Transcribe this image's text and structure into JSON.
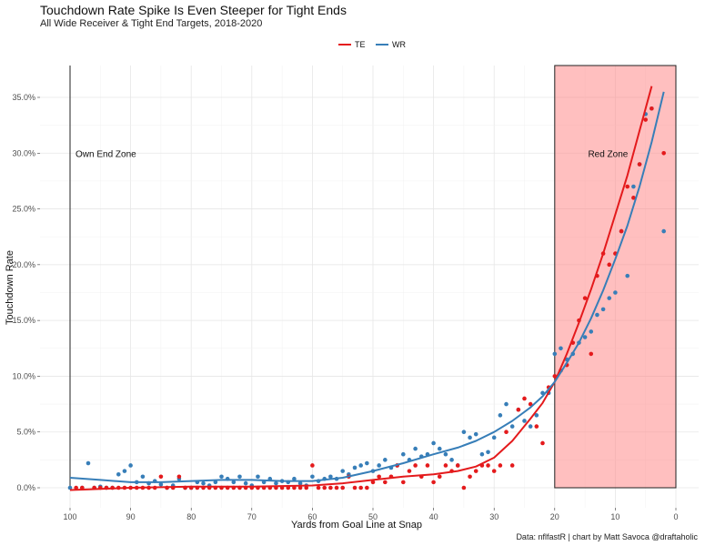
{
  "header": {
    "title": "Touchdown Rate Spike Is Even Steeper for Tight Ends",
    "subtitle": "All Wide Receiver & Tight End Targets, 2018-2020"
  },
  "caption": "Data: nflfastR | chart by Matt Savoca @draftaholic",
  "chart_data": {
    "type": "scatter",
    "xlabel": "Yards from Goal Line at Snap",
    "ylabel": "Touchdown Rate",
    "xlim": [
      100,
      0
    ],
    "ylim": [
      0,
      0.35
    ],
    "x_reversed": true,
    "x_ticks": [
      100,
      90,
      80,
      70,
      60,
      50,
      40,
      30,
      20,
      10,
      0
    ],
    "x_tick_labels": [
      "100",
      "90",
      "80",
      "70",
      "60",
      "50",
      "40",
      "30",
      "20",
      "10",
      "0"
    ],
    "y_ticks": [
      0,
      0.05,
      0.1,
      0.15,
      0.2,
      0.25,
      0.3,
      0.35
    ],
    "y_tick_labels": [
      "0.0%",
      "5.0%",
      "10.0%",
      "15.0%",
      "20.0%",
      "25.0%",
      "30.0%",
      "35.0%"
    ],
    "grid": true,
    "legend_position": "top",
    "annotations": {
      "own_end_zone": {
        "label": "Own End Zone",
        "x": 100
      },
      "red_zone": {
        "label": "Red Zone",
        "x_start": 20,
        "x_end": 0
      }
    },
    "series": [
      {
        "name": "TE",
        "color": "#e41a1c",
        "points": [
          [
            99,
            0
          ],
          [
            98,
            0
          ],
          [
            96,
            0
          ],
          [
            95,
            0
          ],
          [
            94,
            0
          ],
          [
            93,
            0
          ],
          [
            92,
            0
          ],
          [
            91,
            0
          ],
          [
            90,
            0
          ],
          [
            89,
            0
          ],
          [
            88,
            0
          ],
          [
            87,
            0
          ],
          [
            86,
            0
          ],
          [
            85,
            0.01
          ],
          [
            84,
            0
          ],
          [
            83,
            0
          ],
          [
            82,
            0.01
          ],
          [
            81,
            0
          ],
          [
            80,
            0
          ],
          [
            79,
            0
          ],
          [
            78,
            0
          ],
          [
            77,
            0
          ],
          [
            76,
            0
          ],
          [
            75,
            0
          ],
          [
            74,
            0
          ],
          [
            73,
            0
          ],
          [
            72,
            0
          ],
          [
            71,
            0
          ],
          [
            70,
            0
          ],
          [
            69,
            0
          ],
          [
            68,
            0
          ],
          [
            67,
            0
          ],
          [
            66,
            0
          ],
          [
            65,
            0
          ],
          [
            64,
            0
          ],
          [
            63,
            0
          ],
          [
            62,
            0
          ],
          [
            61,
            0
          ],
          [
            60,
            0.02
          ],
          [
            59,
            0
          ],
          [
            58,
            0
          ],
          [
            57,
            0
          ],
          [
            56,
            0
          ],
          [
            55,
            0
          ],
          [
            54,
            0.01
          ],
          [
            53,
            0
          ],
          [
            52,
            0
          ],
          [
            51,
            0
          ],
          [
            50,
            0.005
          ],
          [
            49,
            0.01
          ],
          [
            48,
            0.005
          ],
          [
            47,
            0.01
          ],
          [
            46,
            0.02
          ],
          [
            45,
            0.005
          ],
          [
            44,
            0.015
          ],
          [
            43,
            0.02
          ],
          [
            42,
            0.01
          ],
          [
            41,
            0.02
          ],
          [
            40,
            0.005
          ],
          [
            39,
            0.01
          ],
          [
            38,
            0.02
          ],
          [
            37,
            0.015
          ],
          [
            36,
            0.02
          ],
          [
            35,
            0.0
          ],
          [
            34,
            0.01
          ],
          [
            33,
            0.015
          ],
          [
            32,
            0.02
          ],
          [
            31,
            0.02
          ],
          [
            30,
            0.015
          ],
          [
            29,
            0.02
          ],
          [
            28,
            0.05
          ],
          [
            27,
            0.02
          ],
          [
            26,
            0.07
          ],
          [
            25,
            0.08
          ],
          [
            24,
            0.075
          ],
          [
            23,
            0.055
          ],
          [
            22,
            0.04
          ],
          [
            21,
            0.09
          ],
          [
            20,
            0.1
          ],
          [
            19,
            0.105
          ],
          [
            18,
            0.11
          ],
          [
            17,
            0.13
          ],
          [
            16,
            0.15
          ],
          [
            15,
            0.17
          ],
          [
            14,
            0.12
          ],
          [
            13,
            0.19
          ],
          [
            12,
            0.21
          ],
          [
            11,
            0.2
          ],
          [
            10,
            0.21
          ],
          [
            9,
            0.23
          ],
          [
            8,
            0.27
          ],
          [
            7,
            0.26
          ],
          [
            6,
            0.29
          ],
          [
            5,
            0.33
          ],
          [
            4,
            0.34
          ],
          [
            2,
            0.3
          ]
        ],
        "smooth": [
          [
            100,
            -0.002
          ],
          [
            90,
            0.0
          ],
          [
            80,
            0.001
          ],
          [
            70,
            0.001
          ],
          [
            60,
            0.002
          ],
          [
            55,
            0.004
          ],
          [
            50,
            0.007
          ],
          [
            45,
            0.01
          ],
          [
            40,
            0.012
          ],
          [
            36,
            0.015
          ],
          [
            33,
            0.019
          ],
          [
            30,
            0.027
          ],
          [
            27,
            0.042
          ],
          [
            24,
            0.062
          ],
          [
            22,
            0.076
          ],
          [
            20,
            0.095
          ],
          [
            18,
            0.12
          ],
          [
            16,
            0.148
          ],
          [
            14,
            0.178
          ],
          [
            12,
            0.21
          ],
          [
            10,
            0.245
          ],
          [
            8,
            0.28
          ],
          [
            6,
            0.32
          ],
          [
            4,
            0.36
          ]
        ]
      },
      {
        "name": "WR",
        "color": "#377eb8",
        "points": [
          [
            100,
            0
          ],
          [
            98,
            0
          ],
          [
            97,
            0.022
          ],
          [
            96,
            0
          ],
          [
            95,
            0.001
          ],
          [
            94,
            0
          ],
          [
            93,
            0
          ],
          [
            92,
            0.012
          ],
          [
            91,
            0.015
          ],
          [
            90,
            0.02
          ],
          [
            89,
            0.005
          ],
          [
            88,
            0.01
          ],
          [
            87,
            0.004
          ],
          [
            86,
            0.006
          ],
          [
            85,
            0.003
          ],
          [
            84,
            0.0
          ],
          [
            83,
            0.002
          ],
          [
            82,
            0.008
          ],
          [
            81,
            0.0
          ],
          [
            80,
            0.0
          ],
          [
            79,
            0.005
          ],
          [
            78,
            0.004
          ],
          [
            77,
            0.002
          ],
          [
            76,
            0.005
          ],
          [
            75,
            0.01
          ],
          [
            74,
            0.008
          ],
          [
            73,
            0.005
          ],
          [
            72,
            0.01
          ],
          [
            71,
            0.004
          ],
          [
            70,
            0.002
          ],
          [
            69,
            0.01
          ],
          [
            68,
            0.005
          ],
          [
            67,
            0.008
          ],
          [
            66,
            0.004
          ],
          [
            65,
            0.006
          ],
          [
            64,
            0.005
          ],
          [
            63,
            0.008
          ],
          [
            62,
            0.004
          ],
          [
            61,
            0.002
          ],
          [
            60,
            0.01
          ],
          [
            59,
            0.006
          ],
          [
            58,
            0.008
          ],
          [
            57,
            0.01
          ],
          [
            56,
            0.008
          ],
          [
            55,
            0.015
          ],
          [
            54,
            0.012
          ],
          [
            53,
            0.018
          ],
          [
            52,
            0.02
          ],
          [
            51,
            0.022
          ],
          [
            50,
            0.015
          ],
          [
            49,
            0.02
          ],
          [
            48,
            0.025
          ],
          [
            47,
            0.018
          ],
          [
            46,
            0.02
          ],
          [
            45,
            0.03
          ],
          [
            44,
            0.025
          ],
          [
            43,
            0.035
          ],
          [
            42,
            0.028
          ],
          [
            41,
            0.03
          ],
          [
            40,
            0.04
          ],
          [
            39,
            0.035
          ],
          [
            38,
            0.03
          ],
          [
            37,
            0.025
          ],
          [
            36,
            0.02
          ],
          [
            35,
            0.05
          ],
          [
            34,
            0.045
          ],
          [
            33,
            0.048
          ],
          [
            32,
            0.03
          ],
          [
            31,
            0.032
          ],
          [
            30,
            0.045
          ],
          [
            29,
            0.065
          ],
          [
            28,
            0.075
          ],
          [
            27,
            0.055
          ],
          [
            26,
            0.07
          ],
          [
            25,
            0.06
          ],
          [
            24,
            0.055
          ],
          [
            23,
            0.065
          ],
          [
            22,
            0.085
          ],
          [
            21,
            0.085
          ],
          [
            20,
            0.12
          ],
          [
            19,
            0.125
          ],
          [
            18,
            0.115
          ],
          [
            17,
            0.12
          ],
          [
            16,
            0.13
          ],
          [
            15,
            0.135
          ],
          [
            14,
            0.14
          ],
          [
            13,
            0.155
          ],
          [
            12,
            0.16
          ],
          [
            11,
            0.17
          ],
          [
            10,
            0.175
          ],
          [
            9,
            0.23
          ],
          [
            8,
            0.19
          ],
          [
            7,
            0.27
          ],
          [
            6,
            0.29
          ],
          [
            5,
            0.335
          ],
          [
            4,
            0.34
          ],
          [
            2,
            0.23
          ]
        ],
        "smooth": [
          [
            100,
            0.009
          ],
          [
            95,
            0.007
          ],
          [
            90,
            0.005
          ],
          [
            85,
            0.005
          ],
          [
            80,
            0.006
          ],
          [
            75,
            0.007
          ],
          [
            70,
            0.007
          ],
          [
            65,
            0.006
          ],
          [
            60,
            0.006
          ],
          [
            55,
            0.009
          ],
          [
            50,
            0.015
          ],
          [
            45,
            0.022
          ],
          [
            40,
            0.03
          ],
          [
            36,
            0.036
          ],
          [
            33,
            0.042
          ],
          [
            30,
            0.05
          ],
          [
            27,
            0.06
          ],
          [
            24,
            0.072
          ],
          [
            22,
            0.082
          ],
          [
            20,
            0.095
          ],
          [
            18,
            0.112
          ],
          [
            16,
            0.13
          ],
          [
            14,
            0.152
          ],
          [
            12,
            0.177
          ],
          [
            10,
            0.205
          ],
          [
            8,
            0.235
          ],
          [
            6,
            0.27
          ],
          [
            4,
            0.31
          ],
          [
            2,
            0.355
          ]
        ]
      }
    ]
  }
}
